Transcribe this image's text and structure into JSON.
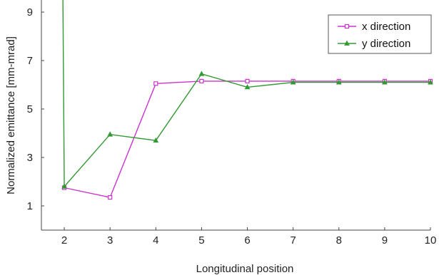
{
  "chart_data": {
    "type": "line",
    "title": "",
    "xlabel": "Longitudinal position",
    "ylabel": "Normalized emittance [mm-mrad]",
    "xlim": [
      1.5,
      10
    ],
    "ylim": [
      0,
      9.5
    ],
    "xticks": [
      2,
      3,
      4,
      5,
      6,
      7,
      8,
      9,
      10
    ],
    "yticks": [
      1,
      3,
      5,
      7,
      9
    ],
    "grid": false,
    "legend_position": "top-right",
    "series": [
      {
        "name": "x direction",
        "color": "#cc33cc",
        "marker": "square",
        "x": [
          2,
          3,
          4,
          5,
          6,
          7,
          8,
          9,
          10
        ],
        "y": [
          1.75,
          1.35,
          6.05,
          6.15,
          6.15,
          6.15,
          6.15,
          6.15,
          6.15
        ]
      },
      {
        "name": "y direction",
        "color": "#339933",
        "marker": "triangle",
        "x": [
          1.97,
          2,
          3,
          4,
          5,
          6,
          7,
          8,
          9,
          10
        ],
        "y": [
          9.5,
          1.8,
          3.95,
          3.7,
          6.45,
          5.9,
          6.1,
          6.1,
          6.1,
          6.1
        ]
      }
    ]
  }
}
